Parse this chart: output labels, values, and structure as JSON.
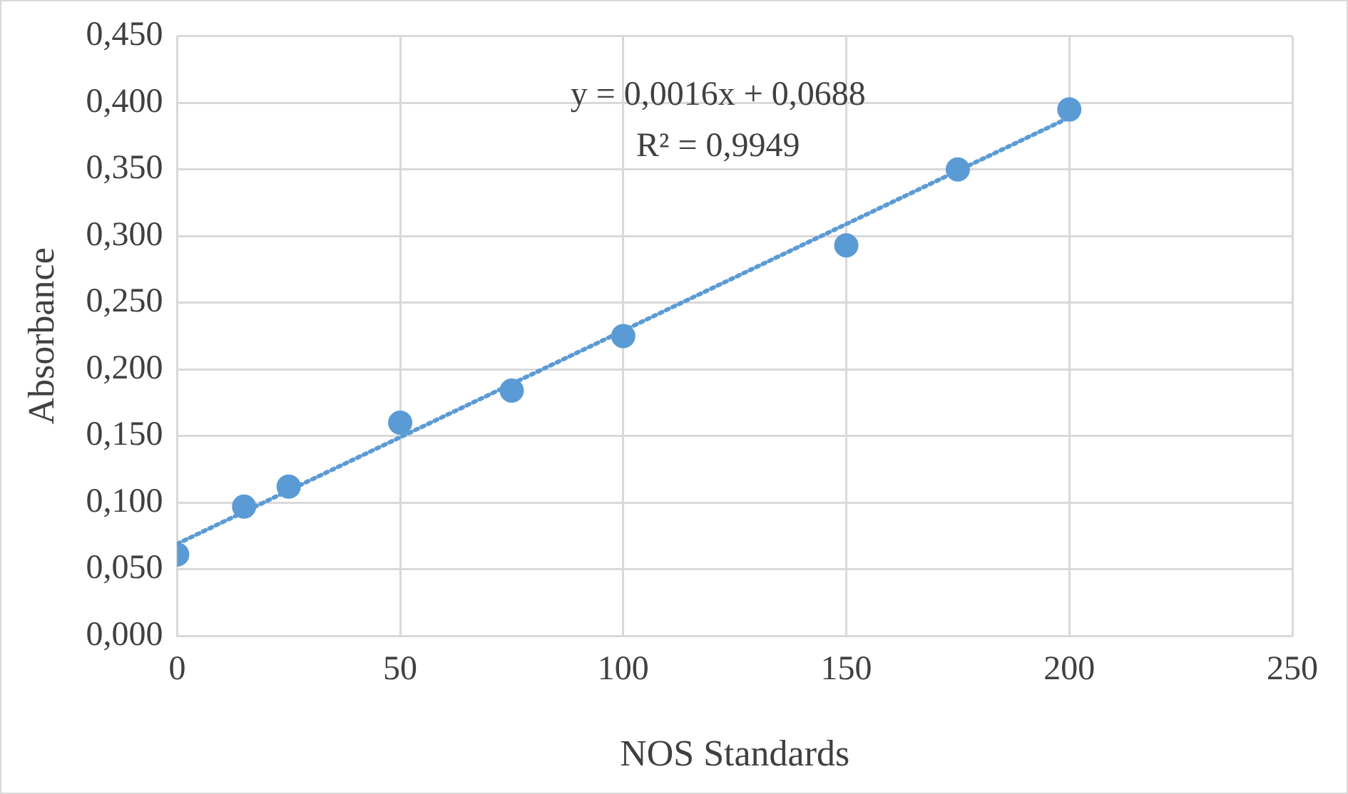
{
  "chart_data": {
    "type": "scatter",
    "xlabel": "NOS Standards",
    "ylabel": "Absorbance",
    "x": [
      0,
      15,
      25,
      50,
      75,
      100,
      150,
      175,
      200
    ],
    "series": [
      {
        "color": "#5b9bd5",
        "marker": "circle",
        "values": [
          0.061,
          0.097,
          0.112,
          0.16,
          0.184,
          0.225,
          0.293,
          0.35,
          0.395
        ]
      },
      {
        "type": "line",
        "color": "#5b9bd5",
        "marker": "none",
        "line_style": "dotted",
        "x": [
          0,
          200
        ],
        "values": [
          0.069,
          0.389
        ]
      }
    ],
    "xlim": [
      0,
      250
    ],
    "xticks": [
      0,
      50,
      100,
      150,
      200,
      250
    ],
    "ylim": [
      0,
      0.45
    ],
    "yticks": [
      {
        "value": 0,
        "label": "0,000"
      },
      {
        "value": 0.05,
        "label": "0,050"
      },
      {
        "value": 0.1,
        "label": "0,100"
      },
      {
        "value": 0.15,
        "label": "0,150"
      },
      {
        "value": 0.2,
        "label": "0,200"
      },
      {
        "value": 0.25,
        "label": "0,250"
      },
      {
        "value": 0.3,
        "label": "0,300"
      },
      {
        "value": 0.35,
        "label": "0,350"
      },
      {
        "value": 0.4,
        "label": "0,400"
      },
      {
        "value": 0.45,
        "label": "0,450"
      }
    ],
    "grid": true,
    "legend": false,
    "annotations": [
      "y = 0,0016x + 0,0688",
      "R² = 0,9949"
    ]
  }
}
